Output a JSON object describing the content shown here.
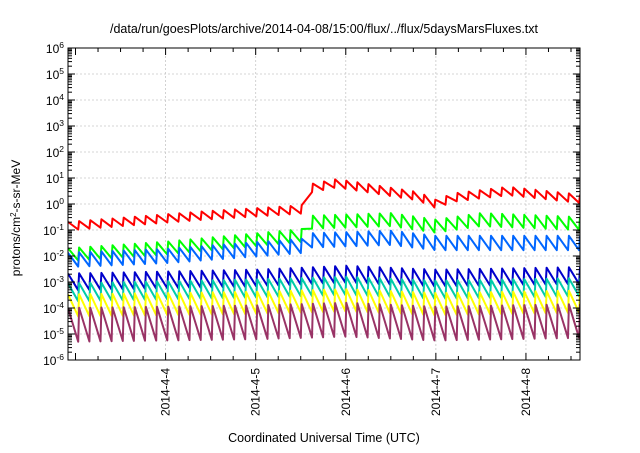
{
  "chart_data": {
    "type": "line",
    "title": "/data/run/goesPlots/archive/2014-04-08/15:00/flux/../flux/5daysMarsFluxes.txt",
    "xlabel": "Coordinated Universal Time (UTC)",
    "ylabel": {
      "prefix": "protons/cm",
      "sup": "2",
      "suffix": "-s-sr-MeV"
    },
    "y_scale": "log",
    "ylim_exponents": [
      -6,
      6
    ],
    "y_ticks": [
      {
        "base": "10",
        "exp": "6"
      },
      {
        "base": "10",
        "exp": "5"
      },
      {
        "base": "10",
        "exp": "4"
      },
      {
        "base": "10",
        "exp": "3"
      },
      {
        "base": "10",
        "exp": "2"
      },
      {
        "base": "10",
        "exp": "1"
      },
      {
        "base": "10",
        "exp": "0"
      },
      {
        "base": "10",
        "exp": "-1"
      },
      {
        "base": "10",
        "exp": "-2"
      },
      {
        "base": "10",
        "exp": "-3"
      },
      {
        "base": "10",
        "exp": "-4"
      },
      {
        "base": "10",
        "exp": "-5"
      },
      {
        "base": "10",
        "exp": "-6"
      }
    ],
    "xlim_days": [
      -0.0833,
      5.6
    ],
    "x_ticks": [
      {
        "label": "2014-4-4",
        "day": 1.0
      },
      {
        "label": "2014-4-5",
        "day": 2.0
      },
      {
        "label": "2014-4-6",
        "day": 3.0
      },
      {
        "label": "2014-4-7",
        "day": 4.0
      },
      {
        "label": "2014-4-8",
        "day": 5.0
      }
    ],
    "grid": true,
    "series": [
      {
        "color": "#ff0000",
        "sawtooth": {
          "n": 46,
          "amp": 0.32,
          "start": [
            -0.083,
            -0.85
          ],
          "trend": [
            [
              -0.083,
              -0.85
            ],
            [
              1.4,
              -0.45
            ],
            [
              2.55,
              -0.2
            ],
            [
              2.6,
              0.6
            ],
            [
              2.9,
              0.8
            ],
            [
              3.8,
              0.3
            ],
            [
              4.0,
              0.0
            ],
            [
              4.2,
              0.25
            ],
            [
              4.8,
              0.5
            ],
            [
              5.6,
              0.2
            ]
          ]
        }
      },
      {
        "color": "#00ff00",
        "sawtooth": {
          "n": 46,
          "amp": 0.5,
          "trend": [
            [
              -0.083,
              -1.95
            ],
            [
              1.0,
              -1.7
            ],
            [
              2.55,
              -1.2
            ],
            [
              2.6,
              -0.7
            ],
            [
              3.5,
              -0.6
            ],
            [
              4.0,
              -0.85
            ],
            [
              4.5,
              -0.6
            ],
            [
              5.6,
              -0.75
            ]
          ]
        }
      },
      {
        "color": "#0066ff",
        "sawtooth": {
          "n": 46,
          "amp": 0.55,
          "trend": [
            [
              -0.083,
              -2.15
            ],
            [
              1.0,
              -2.0
            ],
            [
              2.55,
              -1.6
            ],
            [
              2.6,
              -1.4
            ],
            [
              3.5,
              -1.3
            ],
            [
              4.0,
              -1.5
            ],
            [
              5.6,
              -1.5
            ]
          ]
        }
      },
      {
        "color": "#0000cc",
        "sawtooth": {
          "n": 46,
          "amp": 0.65,
          "trend": [
            [
              -0.083,
              -3.0
            ],
            [
              2.0,
              -2.85
            ],
            [
              3.0,
              -2.7
            ],
            [
              4.0,
              -2.85
            ],
            [
              5.6,
              -2.75
            ]
          ]
        }
      },
      {
        "color": "#00ccaa",
        "sawtooth": {
          "n": 46,
          "amp": 0.7,
          "trend": [
            [
              -0.083,
              -3.4
            ],
            [
              2.0,
              -3.25
            ],
            [
              3.0,
              -3.15
            ],
            [
              4.0,
              -3.3
            ],
            [
              5.6,
              -3.2
            ]
          ]
        }
      },
      {
        "color": "#ffff00",
        "sawtooth": {
          "n": 46,
          "amp": 0.85,
          "trend": [
            [
              -0.083,
              -3.9
            ],
            [
              2.0,
              -3.8
            ],
            [
              3.0,
              -3.7
            ],
            [
              4.0,
              -3.85
            ],
            [
              5.6,
              -3.75
            ]
          ]
        }
      },
      {
        "color": "#993366",
        "sawtooth": {
          "n": 46,
          "amp": 1.3,
          "trend": [
            [
              -0.083,
              -4.65
            ],
            [
              2.0,
              -4.55
            ],
            [
              3.0,
              -4.45
            ],
            [
              4.0,
              -4.6
            ],
            [
              5.6,
              -4.5
            ]
          ]
        }
      }
    ]
  }
}
